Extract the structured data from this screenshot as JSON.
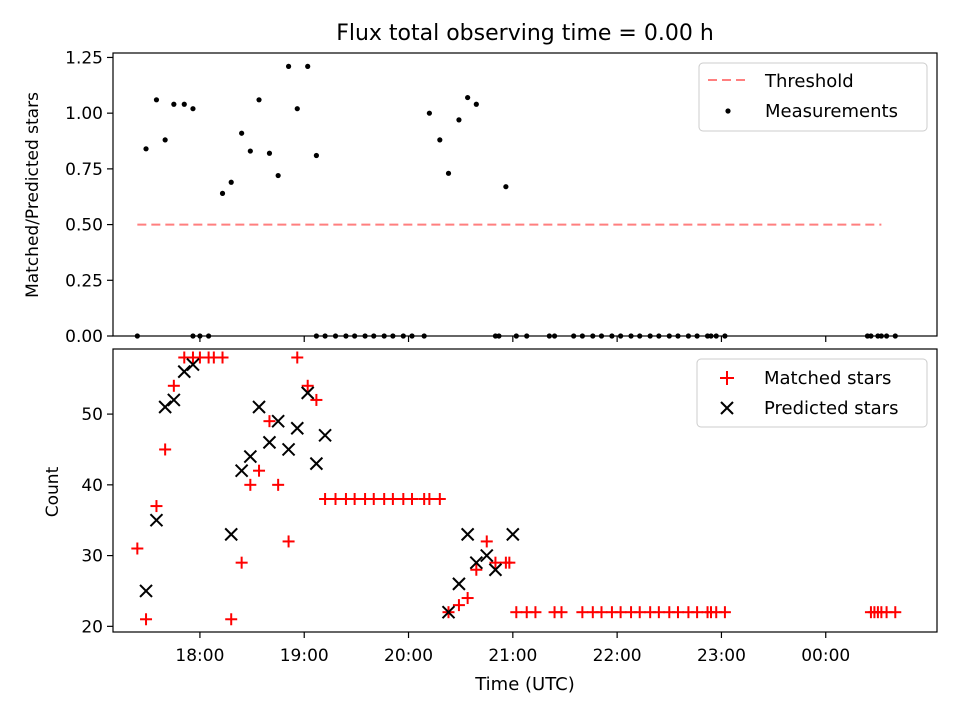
{
  "title": "Flux total observing time = 0.00 h",
  "xlabel": "Time (UTC)",
  "chart_data": [
    {
      "type": "scatter",
      "ylabel": "Matched/Predicted stars",
      "ylim": [
        0,
        1.27
      ],
      "yticks": [
        "0.00",
        "0.25",
        "0.50",
        "0.75",
        "1.00",
        "1.25"
      ],
      "legend": "top-right",
      "threshold": {
        "name": "Threshold",
        "y": 0.5,
        "x_start": "17:24",
        "x_end": "00:32",
        "color": "#ff7f7f"
      },
      "series": [
        {
          "name": "Measurements",
          "color": "#000000",
          "points": [
            [
              "17:24",
              0
            ],
            [
              "17:29",
              0.84
            ],
            [
              "17:35",
              1.06
            ],
            [
              "17:40",
              0.88
            ],
            [
              "17:45",
              1.04
            ],
            [
              "17:51",
              1.04
            ],
            [
              "17:56",
              1.02
            ],
            [
              "17:56",
              0
            ],
            [
              "18:00",
              0
            ],
            [
              "18:05",
              0
            ],
            [
              "18:13",
              0.64
            ],
            [
              "18:18",
              0.69
            ],
            [
              "18:24",
              0.91
            ],
            [
              "18:29",
              0.83
            ],
            [
              "18:34",
              1.06
            ],
            [
              "18:40",
              0.82
            ],
            [
              "18:45",
              0.72
            ],
            [
              "18:51",
              1.21
            ],
            [
              "18:56",
              1.02
            ],
            [
              "19:02",
              1.21
            ],
            [
              "19:07",
              0.81
            ],
            [
              "19:07",
              0
            ],
            [
              "19:12",
              0
            ],
            [
              "19:18",
              0
            ],
            [
              "19:24",
              0
            ],
            [
              "19:29",
              0
            ],
            [
              "19:35",
              0
            ],
            [
              "19:40",
              0
            ],
            [
              "19:46",
              0
            ],
            [
              "19:51",
              0
            ],
            [
              "19:57",
              0
            ],
            [
              "20:02",
              0
            ],
            [
              "20:09",
              0
            ],
            [
              "20:12",
              1.0
            ],
            [
              "20:18",
              0.88
            ],
            [
              "20:23",
              0.73
            ],
            [
              "20:29",
              0.97
            ],
            [
              "20:34",
              1.07
            ],
            [
              "20:39",
              1.04
            ],
            [
              "20:50",
              0
            ],
            [
              "20:52",
              0
            ],
            [
              "20:56",
              0.67
            ],
            [
              "21:02",
              0
            ],
            [
              "21:08",
              0
            ],
            [
              "21:21",
              0
            ],
            [
              "21:24",
              0
            ],
            [
              "21:35",
              0
            ],
            [
              "21:40",
              0
            ],
            [
              "21:46",
              0
            ],
            [
              "21:51",
              0
            ],
            [
              "21:57",
              0
            ],
            [
              "22:02",
              0
            ],
            [
              "22:08",
              0
            ],
            [
              "22:13",
              0
            ],
            [
              "22:19",
              0
            ],
            [
              "22:24",
              0
            ],
            [
              "22:30",
              0
            ],
            [
              "22:35",
              0
            ],
            [
              "22:41",
              0
            ],
            [
              "22:46",
              0
            ],
            [
              "22:52",
              0
            ],
            [
              "22:54",
              0
            ],
            [
              "22:57",
              0
            ],
            [
              "23:02",
              0
            ],
            [
              "00:24",
              0
            ],
            [
              "00:26",
              0
            ],
            [
              "00:30",
              0
            ],
            [
              "00:32",
              0
            ],
            [
              "00:35",
              0
            ],
            [
              "00:40",
              0
            ]
          ]
        }
      ]
    },
    {
      "type": "scatter",
      "ylabel": "Count",
      "ylim": [
        19.2,
        59.2
      ],
      "yticks": [
        "20",
        "30",
        "40",
        "50"
      ],
      "legend": "top-right",
      "series": [
        {
          "name": "Matched stars",
          "color": "#ff0000",
          "marker": "+",
          "points": [
            [
              "17:24",
              31
            ],
            [
              "17:29",
              21
            ],
            [
              "17:35",
              37
            ],
            [
              "17:40",
              45
            ],
            [
              "17:45",
              54
            ],
            [
              "17:51",
              58
            ],
            [
              "17:56",
              58
            ],
            [
              "18:00",
              58
            ],
            [
              "18:05",
              58
            ],
            [
              "18:08",
              58
            ],
            [
              "18:13",
              58
            ],
            [
              "18:18",
              21
            ],
            [
              "18:24",
              29
            ],
            [
              "18:29",
              40
            ],
            [
              "18:34",
              42
            ],
            [
              "18:40",
              49
            ],
            [
              "18:45",
              40
            ],
            [
              "18:51",
              32
            ],
            [
              "18:56",
              58
            ],
            [
              "19:02",
              54
            ],
            [
              "19:07",
              52
            ],
            [
              "19:12",
              38
            ],
            [
              "19:18",
              38
            ],
            [
              "19:24",
              38
            ],
            [
              "19:29",
              38
            ],
            [
              "19:35",
              38
            ],
            [
              "19:40",
              38
            ],
            [
              "19:46",
              38
            ],
            [
              "19:51",
              38
            ],
            [
              "19:57",
              38
            ],
            [
              "20:02",
              38
            ],
            [
              "20:09",
              38
            ],
            [
              "20:12",
              38
            ],
            [
              "20:18",
              38
            ],
            [
              "20:23",
              22
            ],
            [
              "20:29",
              23
            ],
            [
              "20:34",
              24
            ],
            [
              "20:39",
              28
            ],
            [
              "20:45",
              32
            ],
            [
              "20:50",
              29
            ],
            [
              "20:56",
              29
            ],
            [
              "20:58",
              29
            ],
            [
              "21:02",
              22
            ],
            [
              "21:08",
              22
            ],
            [
              "21:13",
              22
            ],
            [
              "21:24",
              22
            ],
            [
              "21:28",
              22
            ],
            [
              "21:40",
              22
            ],
            [
              "21:46",
              22
            ],
            [
              "21:51",
              22
            ],
            [
              "21:57",
              22
            ],
            [
              "22:02",
              22
            ],
            [
              "22:08",
              22
            ],
            [
              "22:13",
              22
            ],
            [
              "22:19",
              22
            ],
            [
              "22:24",
              22
            ],
            [
              "22:30",
              22
            ],
            [
              "22:35",
              22
            ],
            [
              "22:41",
              22
            ],
            [
              "22:46",
              22
            ],
            [
              "22:52",
              22
            ],
            [
              "22:54",
              22
            ],
            [
              "22:57",
              22
            ],
            [
              "23:02",
              22
            ],
            [
              "00:26",
              22
            ],
            [
              "00:28",
              22
            ],
            [
              "00:30",
              22
            ],
            [
              "00:32",
              22
            ],
            [
              "00:35",
              22
            ],
            [
              "00:40",
              22
            ]
          ]
        },
        {
          "name": "Predicted stars",
          "color": "#000000",
          "marker": "x",
          "points": [
            [
              "17:29",
              25
            ],
            [
              "17:35",
              35
            ],
            [
              "17:40",
              51
            ],
            [
              "17:45",
              52
            ],
            [
              "17:51",
              56
            ],
            [
              "17:56",
              57
            ],
            [
              "18:18",
              33
            ],
            [
              "18:24",
              42
            ],
            [
              "18:29",
              44
            ],
            [
              "18:34",
              51
            ],
            [
              "18:40",
              46
            ],
            [
              "18:45",
              49
            ],
            [
              "18:51",
              45
            ],
            [
              "18:56",
              48
            ],
            [
              "19:02",
              53
            ],
            [
              "19:07",
              43
            ],
            [
              "19:12",
              47
            ],
            [
              "20:23",
              22
            ],
            [
              "20:29",
              26
            ],
            [
              "20:34",
              33
            ],
            [
              "20:39",
              29
            ],
            [
              "20:45",
              30
            ],
            [
              "20:50",
              28
            ],
            [
              "21:00",
              33
            ]
          ]
        }
      ]
    }
  ],
  "x_axis": {
    "ticks": [
      "18:00",
      "19:00",
      "20:00",
      "21:00",
      "22:00",
      "23:00",
      "00:00"
    ],
    "min": "17:10",
    "max": "01:04"
  }
}
